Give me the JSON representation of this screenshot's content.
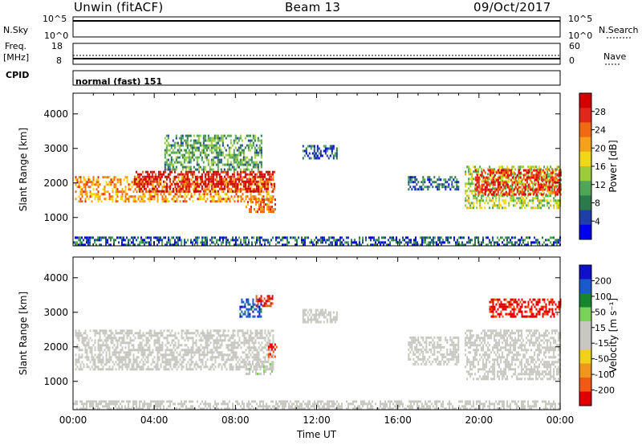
{
  "header": {
    "station": "Unwin (fitACF)",
    "beam": "Beam 13",
    "date": "09/Oct/2017"
  },
  "aux_panels": {
    "nsky_label": "N.Sky",
    "nsky_ticks": [
      "10^5",
      "10^0"
    ],
    "nsearch_label": "N.Search",
    "nsearch_ticks": [
      "10^5",
      "10^0"
    ],
    "freq_label_1": "Freq.",
    "freq_label_2": "[MHz]",
    "freq_ticks": [
      "18",
      "8"
    ],
    "nave_label": "Nave",
    "nave_ticks": [
      "60",
      "0"
    ],
    "cpid_label": "CPID",
    "cpid_value": "normal (fast) 151"
  },
  "colors": {
    "power_scale": [
      "#0000ee",
      "#1e3ea8",
      "#2b7a4b",
      "#4fa657",
      "#9ccc3a",
      "#f0d818",
      "#f5a21a",
      "#f06a14",
      "#e0281a",
      "#d40000"
    ],
    "velocity_scale": [
      "#1010c8",
      "#1a5acb",
      "#17852d",
      "#7ad25a",
      "#c8c8c0",
      "#c8c8c0",
      "#f0d21a",
      "#f0961c",
      "#f05a14",
      "#e00000"
    ]
  },
  "chart_data": [
    {
      "type": "heatmap",
      "panel": "power",
      "x_axis_time_range": [
        "00:00",
        "00:00"
      ],
      "xlim_hours": [
        0,
        24
      ],
      "ylabel": "Slant Range [km]",
      "ylim": [
        180,
        4600
      ],
      "y_ticks": [
        1000,
        2000,
        3000,
        4000
      ],
      "colorbar": {
        "label": "Power [dB]",
        "ticks": [
          4,
          8,
          12,
          16,
          20,
          24,
          28
        ],
        "range": [
          0,
          30
        ]
      },
      "regions": [
        {
          "t": [
            0.1,
            9.9
          ],
          "range": [
            1450,
            2200
          ],
          "value": 20
        },
        {
          "t": [
            3.0,
            9.9
          ],
          "range": [
            1750,
            2350
          ],
          "value": 28
        },
        {
          "t": [
            4.5,
            9.3
          ],
          "range": [
            2400,
            3400
          ],
          "value": 10
        },
        {
          "t": [
            8.5,
            10.0
          ],
          "range": [
            1150,
            1550
          ],
          "value": 22
        },
        {
          "t": [
            11.3,
            13.0
          ],
          "range": [
            2700,
            3100
          ],
          "value": 6
        },
        {
          "t": [
            16.5,
            19.0
          ],
          "range": [
            1800,
            2200
          ],
          "value": 6
        },
        {
          "t": [
            19.3,
            24.0
          ],
          "range": [
            1300,
            2500
          ],
          "value": 14
        },
        {
          "t": [
            19.8,
            24.0
          ],
          "range": [
            1700,
            2400
          ],
          "value": 26
        },
        {
          "t": [
            0.0,
            24.0
          ],
          "range": [
            200,
            450
          ],
          "value": 6
        }
      ]
    },
    {
      "type": "heatmap",
      "panel": "velocity",
      "x_axis_time_range": [
        "00:00",
        "00:00"
      ],
      "xlim_hours": [
        0,
        24
      ],
      "xlabel": "Time UT",
      "x_ticks": [
        "00:00",
        "04:00",
        "08:00",
        "12:00",
        "16:00",
        "20:00",
        "00:00"
      ],
      "ylabel": "Slant Range [km]",
      "ylim": [
        180,
        4600
      ],
      "y_ticks": [
        1000,
        2000,
        3000,
        4000
      ],
      "colorbar": {
        "label": "Velocity [m s⁻¹]",
        "ticks": [
          "200",
          "100",
          "50",
          "15",
          "-15",
          "-50",
          "-100",
          "-200"
        ],
        "range": [
          -250,
          250
        ]
      },
      "regions": [
        {
          "t": [
            0.1,
            9.9
          ],
          "range": [
            1350,
            2500
          ],
          "value": 0
        },
        {
          "t": [
            8.2,
            9.3
          ],
          "range": [
            2900,
            3400
          ],
          "value": 180
        },
        {
          "t": [
            9.0,
            9.8
          ],
          "range": [
            3200,
            3500
          ],
          "value": -200
        },
        {
          "t": [
            8.5,
            9.8
          ],
          "range": [
            1250,
            1600
          ],
          "value": 40
        },
        {
          "t": [
            9.6,
            10.0
          ],
          "range": [
            1700,
            2100
          ],
          "value": -200
        },
        {
          "t": [
            11.3,
            13.0
          ],
          "range": [
            2700,
            3100
          ],
          "value": 20
        },
        {
          "t": [
            16.5,
            19.0
          ],
          "range": [
            1500,
            2300
          ],
          "value": 0
        },
        {
          "t": [
            19.3,
            24.0
          ],
          "range": [
            1100,
            2500
          ],
          "value": 0
        },
        {
          "t": [
            20.5,
            24.0
          ],
          "range": [
            2900,
            3400
          ],
          "value": -220
        },
        {
          "t": [
            0.0,
            24.0
          ],
          "range": [
            200,
            450
          ],
          "value": -30
        }
      ]
    }
  ]
}
